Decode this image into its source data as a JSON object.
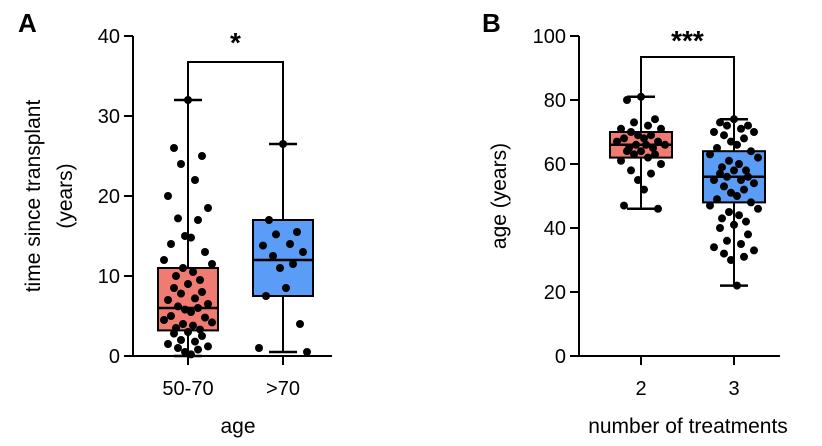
{
  "chart_data": [
    {
      "type": "box",
      "panel": "A",
      "categories": [
        "50-70",
        ">70"
      ],
      "xlabel": "age",
      "ylabel": [
        "time since transplant",
        "(years)"
      ],
      "ylim": [
        0,
        40
      ],
      "yticks": [
        0,
        10,
        20,
        30,
        40
      ],
      "significance": "*",
      "colors": [
        "#f07b72",
        "#5b9cf6"
      ],
      "series": [
        {
          "category": "50-70",
          "min": 0,
          "q1": 3.2,
          "median": 6,
          "q3": 11,
          "max": 32,
          "points": [
            32,
            26,
            25,
            24,
            22,
            20,
            18.5,
            17.2,
            17,
            15,
            14.8,
            14,
            13,
            12,
            11.5,
            11,
            10.5,
            10,
            9.5,
            9,
            8.5,
            8,
            7.8,
            7.2,
            7,
            6.5,
            6.2,
            6,
            5.8,
            5.5,
            5,
            4.8,
            4.5,
            4.2,
            4,
            3.8,
            3.5,
            3.3,
            3,
            2.8,
            2.5,
            2,
            1.8,
            1.5,
            1.2,
            1,
            0.8,
            0.5,
            0.2
          ]
        },
        {
          "category": ">70",
          "min": 0.5,
          "q1": 7.5,
          "median": 12,
          "q3": 17,
          "max": 26.5,
          "points": [
            26.5,
            17,
            15.5,
            15.2,
            14,
            13.8,
            13,
            12.5,
            11.5,
            11,
            8.5,
            7.5,
            4,
            1,
            0.5
          ]
        }
      ]
    },
    {
      "type": "box",
      "panel": "B",
      "categories": [
        "2",
        "3"
      ],
      "xlabel": "number of treatments",
      "ylabel": [
        "age (years)"
      ],
      "ylim": [
        0,
        100
      ],
      "yticks": [
        0,
        20,
        40,
        60,
        80,
        100
      ],
      "significance": "***",
      "colors": [
        "#f07b72",
        "#5b9cf6"
      ],
      "series": [
        {
          "category": "2",
          "min": 46,
          "q1": 62,
          "median": 66,
          "q3": 70,
          "max": 81,
          "points": [
            81,
            80,
            74,
            73,
            72,
            71,
            71,
            70,
            69,
            69,
            68,
            68,
            67,
            67,
            66,
            66,
            66,
            65,
            65,
            64,
            64,
            63,
            63,
            62,
            61,
            60,
            58,
            57,
            55,
            52,
            47,
            46
          ]
        },
        {
          "category": "3",
          "min": 22,
          "q1": 48,
          "median": 56,
          "q3": 64,
          "max": 74,
          "points": [
            74,
            73,
            72,
            72,
            71,
            70,
            70,
            69,
            68,
            67,
            66,
            65,
            64,
            63,
            62,
            61,
            60,
            59,
            58,
            58,
            57,
            56,
            56,
            55,
            55,
            54,
            53,
            52,
            51,
            50,
            49,
            48,
            47,
            46,
            45,
            44,
            43,
            42,
            41,
            40,
            38,
            36,
            35,
            34,
            33,
            32,
            31,
            30,
            22
          ]
        }
      ]
    }
  ]
}
